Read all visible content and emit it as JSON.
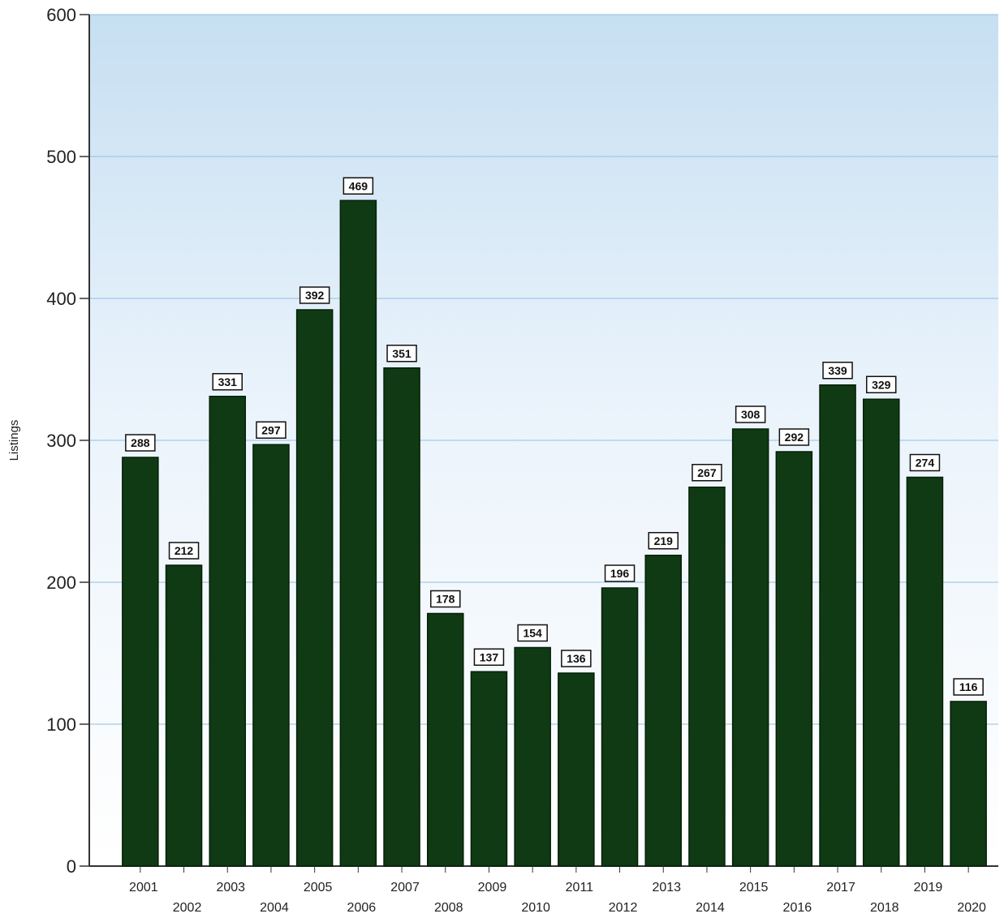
{
  "chart_data": {
    "type": "bar",
    "title": "",
    "xlabel": "",
    "ylabel": "Listings",
    "ylim": [
      0,
      600
    ],
    "yticks": [
      0,
      100,
      200,
      300,
      400,
      500,
      600
    ],
    "grid": true,
    "legend": "none",
    "categories": [
      "2001",
      "2002",
      "2003",
      "2004",
      "2005",
      "2006",
      "2007",
      "2008",
      "2009",
      "2010",
      "2011",
      "2012",
      "2013",
      "2014",
      "2015",
      "2016",
      "2017",
      "2018",
      "2019",
      "2020"
    ],
    "values": [
      288,
      212,
      331,
      297,
      392,
      469,
      351,
      178,
      137,
      154,
      136,
      196,
      219,
      267,
      308,
      292,
      339,
      329,
      274,
      116
    ],
    "data_labels": [
      "288",
      "212",
      "331",
      "297",
      "392",
      "469",
      "351",
      "178",
      "137",
      "154",
      "136",
      "196",
      "219",
      "267",
      "308",
      "292",
      "339",
      "329",
      "274",
      "116"
    ],
    "colors": {
      "bar": "#0f3a14",
      "bar_edge": "#062008",
      "plot_bg_top": "#c6dff2",
      "plot_bg_bottom": "#ffffff",
      "grid": "#8fbfe3",
      "axis": "#333333"
    }
  }
}
